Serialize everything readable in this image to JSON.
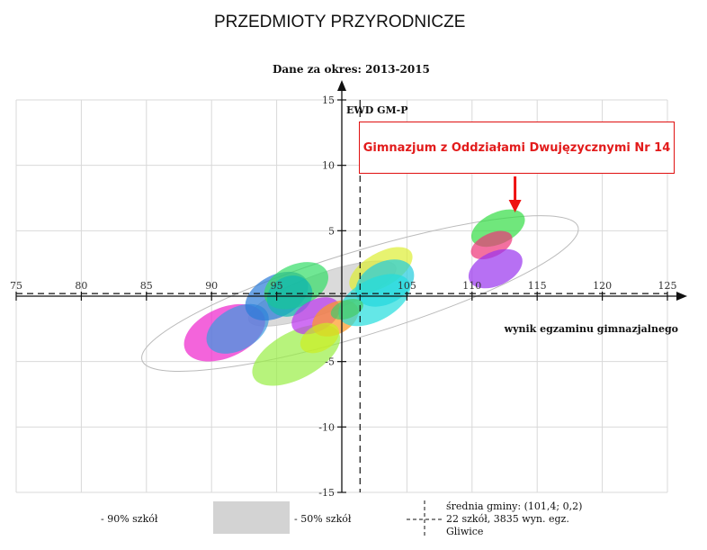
{
  "page_title": "PRZEDMIOTY PRZYRODNICZE",
  "period": "Dane za okres: 2013-2015",
  "callout": "Gimnazjum z Oddziałami Dwujęzycznymi Nr 14",
  "chart_data": {
    "type": "scatter",
    "xlabel": "wynik egzaminu gimnazjalnego",
    "ylabel": "EWD GM-P",
    "xlim": [
      75,
      125
    ],
    "ylim": [
      -15,
      15
    ],
    "x_ticks": [
      "75",
      "80",
      "85",
      "90",
      "95",
      "105",
      "110",
      "115",
      "120",
      "125"
    ],
    "x_tick_values": [
      75,
      80,
      85,
      90,
      95,
      105,
      110,
      115,
      120,
      125
    ],
    "y_ticks": [
      "15",
      "10",
      "5",
      "-5",
      "-10",
      "-15"
    ],
    "y_tick_values": [
      15,
      10,
      5,
      -5,
      -10,
      -15
    ],
    "grid": true,
    "municipal_mean": {
      "x": 101.4,
      "y": 0.2
    },
    "ranges": [
      {
        "kind": "90%",
        "cx": 101.4,
        "cy": 0.2,
        "rx": 17.5,
        "ry": 3.2,
        "angle": 17,
        "fill": "#ffffff",
        "stroke": "#bbbbbb"
      },
      {
        "kind": "50%",
        "cx": 98.5,
        "cy": 0.2,
        "rx": 6.0,
        "ry": 1.5,
        "angle": 20,
        "fill": "#d3d3d3",
        "stroke": "#c8c8c8"
      }
    ],
    "schools": [
      {
        "cx": 91.0,
        "cy": -2.8,
        "rx": 3.3,
        "ry": 1.9,
        "angle": 24,
        "color": "#ee22cc"
      },
      {
        "cx": 92.0,
        "cy": -2.5,
        "rx": 2.6,
        "ry": 1.6,
        "angle": 30,
        "color": "#3a9ae0"
      },
      {
        "cx": 95.0,
        "cy": 0.0,
        "rx": 2.6,
        "ry": 1.6,
        "angle": 28,
        "color": "#2a7ad8"
      },
      {
        "cx": 96.5,
        "cy": 0.8,
        "rx": 2.6,
        "ry": 1.6,
        "angle": 24,
        "color": "#33dd66"
      },
      {
        "cx": 96.0,
        "cy": 0.0,
        "rx": 1.8,
        "ry": 1.5,
        "angle": 28,
        "color": "#10b8b0"
      },
      {
        "cx": 96.5,
        "cy": -4.5,
        "rx": 3.7,
        "ry": 1.8,
        "angle": 28,
        "color": "#99ee44"
      },
      {
        "cx": 98.0,
        "cy": -1.5,
        "rx": 2.0,
        "ry": 1.2,
        "angle": 28,
        "color": "#bb33ee"
      },
      {
        "cx": 99.5,
        "cy": -1.7,
        "rx": 1.9,
        "ry": 1.2,
        "angle": 28,
        "color": "#ff9922"
      },
      {
        "cx": 98.3,
        "cy": -3.2,
        "rx": 1.6,
        "ry": 1.0,
        "angle": 28,
        "color": "#ccee22"
      },
      {
        "cx": 103.0,
        "cy": 2.0,
        "rx": 2.7,
        "ry": 1.3,
        "angle": 30,
        "color": "#ddee33"
      },
      {
        "cx": 103.3,
        "cy": 1.0,
        "rx": 2.4,
        "ry": 1.6,
        "angle": 28,
        "color": "#22ccdd"
      },
      {
        "cx": 102.5,
        "cy": -0.3,
        "rx": 3.0,
        "ry": 1.6,
        "angle": 28,
        "color": "#22dddd"
      },
      {
        "cx": 100.4,
        "cy": -1.0,
        "rx": 1.3,
        "ry": 0.7,
        "angle": 20,
        "color": "#44cc66"
      },
      {
        "cx": 112.0,
        "cy": 5.2,
        "rx": 2.2,
        "ry": 1.2,
        "angle": 25,
        "color": "#33dd44"
      },
      {
        "cx": 111.5,
        "cy": 3.9,
        "rx": 1.7,
        "ry": 0.9,
        "angle": 25,
        "color": "#ee3377"
      },
      {
        "cx": 111.8,
        "cy": 2.1,
        "rx": 2.2,
        "ry": 1.3,
        "angle": 25,
        "color": "#9933ee"
      }
    ],
    "highlight_arrow_x": 113.3,
    "legend": {
      "p90_label": "- 90% szkół",
      "p50_label": "- 50% szkół",
      "mean_line1": "średnia gminy: (101,4; 0,2)",
      "mean_line2": "22 szkół, 3835 wyn. egz.",
      "mean_line3": "Gliwice"
    }
  }
}
